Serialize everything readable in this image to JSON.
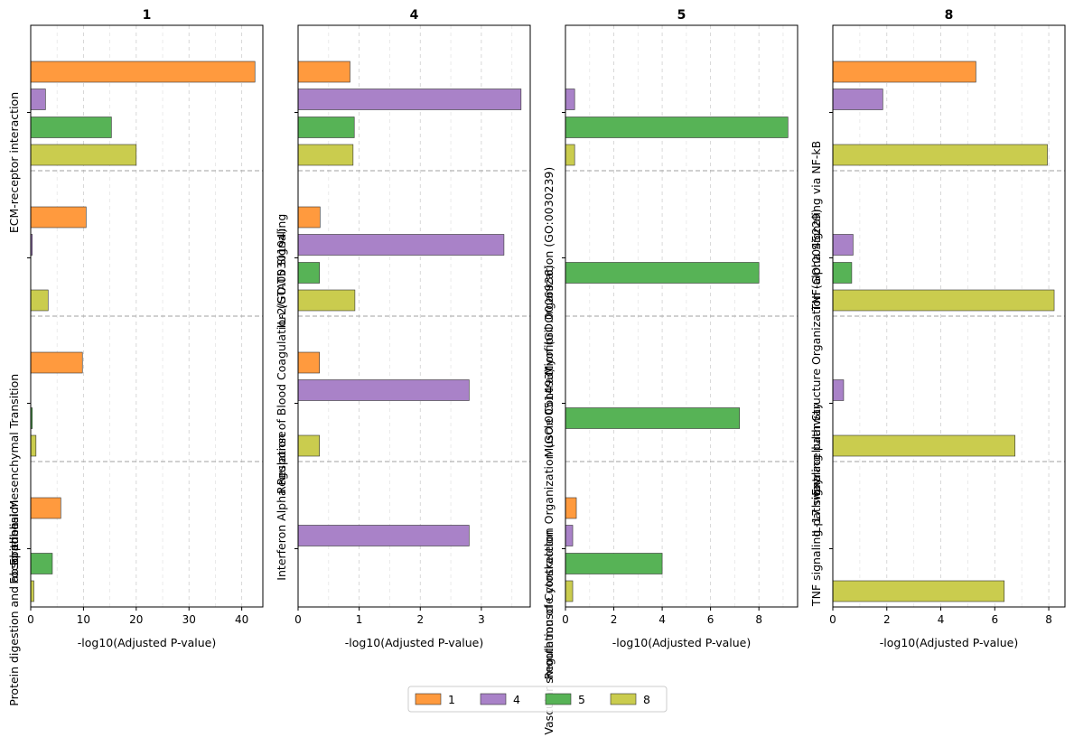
{
  "chart_data": {
    "type": "bar",
    "orientation": "horizontal",
    "grid": "vertical dashed",
    "legend_position": "bottom-center",
    "legend": [
      "1",
      "4",
      "5",
      "8"
    ],
    "series_colors": {
      "1": "#ff9a3e",
      "4": "#a982c8",
      "5": "#57b356",
      "8": "#cacc4e"
    },
    "panels": [
      {
        "title": "1",
        "xlabel": "-log10(Adjusted P-value)",
        "xlim": [
          0,
          44
        ],
        "xticks": [
          "0",
          "10",
          "20",
          "30",
          "40"
        ],
        "xtick_values": [
          0,
          10,
          20,
          30,
          40
        ],
        "terms": [
          {
            "label": "Epithelial Mesenchymal Transition",
            "values": {
              "1": 42.5,
              "4": 2.8,
              "5": 15.3,
              "8": 20.0
            }
          },
          {
            "label": "Protein digestion and absorption",
            "values": {
              "1": 10.5,
              "4": 0.3,
              "5": 0,
              "8": 3.3
            }
          },
          {
            "label": "ECM-receptor interaction",
            "values": {
              "1": 9.8,
              "4": 0,
              "5": 0.3,
              "8": 1.0
            }
          },
          {
            "label": "Focal adhesion",
            "values": {
              "1": 5.7,
              "4": 0,
              "5": 4.1,
              "8": 0.6
            }
          }
        ]
      },
      {
        "title": "4",
        "xlabel": "-log10(Adjusted P-value)",
        "xlim": [
          0,
          3.8
        ],
        "xticks": [
          "0",
          "1",
          "2",
          "3"
        ],
        "xtick_values": [
          0,
          1,
          2,
          3
        ],
        "terms": [
          {
            "label": "Interferon Alpha Response",
            "values": {
              "1": 0.85,
              "4": 3.65,
              "5": 0.92,
              "8": 0.9
            }
          },
          {
            "label": "Regulation of Blood Coagulation (GO:0030194)",
            "values": {
              "1": 0.36,
              "4": 3.37,
              "5": 0.35,
              "8": 0.93
            }
          },
          {
            "label": "IL-2/STAT5 Signaling",
            "values": {
              "1": 0.35,
              "4": 2.8,
              "5": 0,
              "8": 0.35
            }
          },
          {
            "label": "",
            "values": {
              "1": 0,
              "4": 2.8,
              "5": 0,
              "8": 0
            }
          }
        ]
      },
      {
        "title": "5",
        "xlabel": "-log10(Adjusted P-value)",
        "xlim": [
          0,
          9.6
        ],
        "xticks": [
          "0",
          "2",
          "4",
          "6",
          "8"
        ],
        "xtick_values": [
          0,
          2,
          4,
          6,
          8
        ],
        "terms": [
          {
            "label": "Regulation of Cytoskeleton Organization (GO:0051493)",
            "values": {
              "1": 0,
              "4": 0.38,
              "5": 9.2,
              "8": 0.38
            }
          },
          {
            "label": "Muscle Contraction (GO:0006936)",
            "values": {
              "1": 0,
              "4": 0,
              "5": 8.0,
              "8": 0
            }
          },
          {
            "label": "Myofibril Organization (GO:0030239)",
            "values": {
              "1": 0,
              "4": 0,
              "5": 7.2,
              "8": 0
            }
          },
          {
            "label": "Vascular smooth muscle contraction",
            "values": {
              "1": 0.45,
              "4": 0.3,
              "5": 4.0,
              "8": 0.3
            }
          }
        ]
      },
      {
        "title": "8",
        "xlabel": "-log10(Adjusted P-value)",
        "xlim": [
          0,
          8.6
        ],
        "xticks": [
          "0",
          "2",
          "4",
          "6",
          "8"
        ],
        "xtick_values": [
          0,
          2,
          4,
          6,
          8
        ],
        "terms": [
          {
            "label": "IL-17 signaling pathway",
            "values": {
              "1": 5.3,
              "4": 1.85,
              "5": 0,
              "8": 7.95
            }
          },
          {
            "label": "TNF signaling pathway",
            "values": {
              "1": 0,
              "4": 0.75,
              "5": 0.7,
              "8": 8.2
            }
          },
          {
            "label": "Extracellular Structure Organization (GO:0045229)",
            "values": {
              "1": 0,
              "4": 0.4,
              "5": 0,
              "8": 6.75
            }
          },
          {
            "label": "TNF-alpha Signaling via NF-kB",
            "values": {
              "1": 0,
              "4": 0,
              "5": 0,
              "8": 6.35
            }
          }
        ]
      }
    ]
  }
}
